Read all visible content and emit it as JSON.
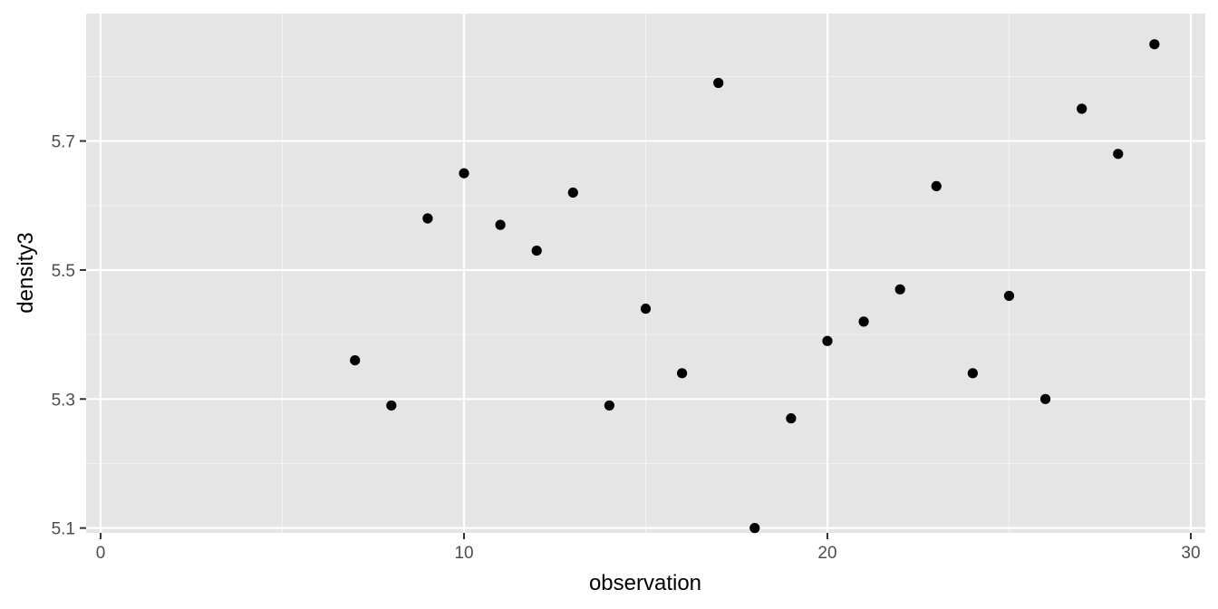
{
  "chart_data": {
    "type": "scatter",
    "title": "",
    "xlabel": "observation",
    "ylabel": "density3",
    "xlim": [
      -0.4,
      30.4
    ],
    "ylim": [
      5.0925,
      5.8975
    ],
    "x_ticks": [
      0,
      10,
      20,
      30
    ],
    "x_tick_labels": [
      "0",
      "10",
      "20",
      "30"
    ],
    "x_minor_ticks": [
      5,
      15,
      25
    ],
    "y_ticks": [
      5.1,
      5.3,
      5.5,
      5.7
    ],
    "y_tick_labels": [
      "5.1",
      "5.3",
      "5.5",
      "5.7"
    ],
    "y_minor_ticks": [
      5.2,
      5.4,
      5.6,
      5.8
    ],
    "grid": true,
    "legend": "none",
    "colors": {
      "panel_background": "#e5e5e5",
      "grid_major": "#ffffff",
      "grid_minor": "#f2f2f2",
      "point": "#000000",
      "tick": "#333333"
    },
    "points": [
      {
        "x": 7,
        "y": 5.36
      },
      {
        "x": 8,
        "y": 5.29
      },
      {
        "x": 9,
        "y": 5.58
      },
      {
        "x": 10,
        "y": 5.65
      },
      {
        "x": 11,
        "y": 5.57
      },
      {
        "x": 12,
        "y": 5.53
      },
      {
        "x": 13,
        "y": 5.62
      },
      {
        "x": 14,
        "y": 5.29
      },
      {
        "x": 15,
        "y": 5.44
      },
      {
        "x": 16,
        "y": 5.34
      },
      {
        "x": 17,
        "y": 5.79
      },
      {
        "x": 18,
        "y": 5.1
      },
      {
        "x": 19,
        "y": 5.27
      },
      {
        "x": 20,
        "y": 5.39
      },
      {
        "x": 21,
        "y": 5.42
      },
      {
        "x": 22,
        "y": 5.47
      },
      {
        "x": 23,
        "y": 5.63
      },
      {
        "x": 24,
        "y": 5.34
      },
      {
        "x": 25,
        "y": 5.46
      },
      {
        "x": 26,
        "y": 5.3
      },
      {
        "x": 27,
        "y": 5.75
      },
      {
        "x": 28,
        "y": 5.68
      },
      {
        "x": 29,
        "y": 5.85
      }
    ]
  }
}
